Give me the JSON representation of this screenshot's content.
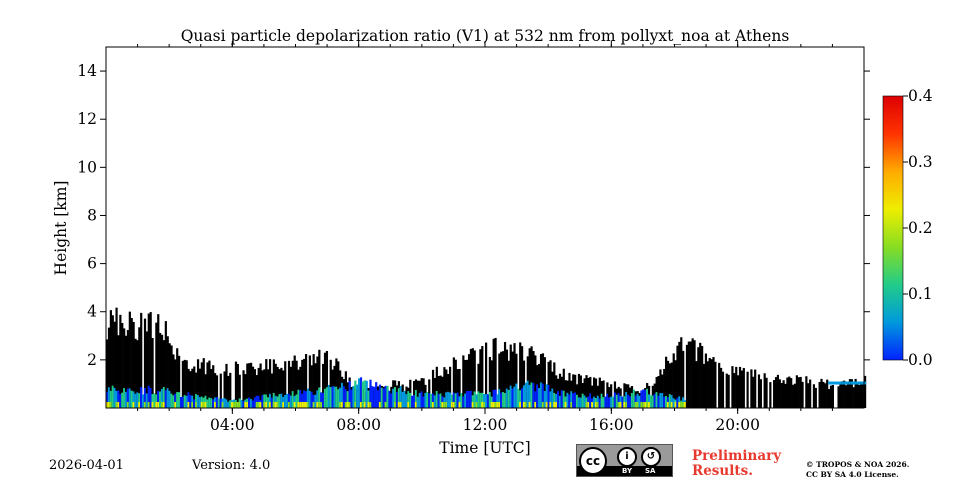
{
  "chart_data": {
    "type": "heatmap",
    "title": "Quasi particle depolarization ratio (V1) at 532 nm from pollyxt_noa at Athens",
    "xlabel": "Time [UTC]",
    "ylabel": "Height [km]",
    "xlim_hours": [
      0,
      24
    ],
    "ylim_km": [
      0,
      15
    ],
    "x_ticks": [
      {
        "hour": 4,
        "label": "04:00"
      },
      {
        "hour": 8,
        "label": "08:00"
      },
      {
        "hour": 12,
        "label": "12:00"
      },
      {
        "hour": 16,
        "label": "16:00"
      },
      {
        "hour": 20,
        "label": "20:00"
      }
    ],
    "y_ticks": [
      {
        "value": 2,
        "label": "2"
      },
      {
        "value": 4,
        "label": "4"
      },
      {
        "value": 6,
        "label": "6"
      },
      {
        "value": 8,
        "label": "8"
      },
      {
        "value": 10,
        "label": "10"
      },
      {
        "value": 12,
        "label": "12"
      },
      {
        "value": 14,
        "label": "14"
      }
    ],
    "colorbar": {
      "min": 0.0,
      "max": 0.4,
      "ticks": [
        {
          "value": 0.0,
          "label": "0.0"
        },
        {
          "value": 0.1,
          "label": "0.1"
        },
        {
          "value": 0.2,
          "label": "0.2"
        },
        {
          "value": 0.3,
          "label": "0.3"
        },
        {
          "value": 0.4,
          "label": "0.4"
        }
      ],
      "colors": [
        "#0022ff",
        "#0099dd",
        "#22cc88",
        "#88dd22",
        "#eeee00",
        "#ffaa00",
        "#ff3300",
        "#dd0000"
      ]
    },
    "colored_layer_top_km": [
      {
        "hour": 0.0,
        "km": 0.8
      },
      {
        "hour": 1.5,
        "km": 0.8
      },
      {
        "hour": 2.8,
        "km": 0.5
      },
      {
        "hour": 4.0,
        "km": 0.3
      },
      {
        "hour": 5.5,
        "km": 0.6
      },
      {
        "hour": 7.0,
        "km": 0.8
      },
      {
        "hour": 8.0,
        "km": 1.1
      },
      {
        "hour": 10.0,
        "km": 0.6
      },
      {
        "hour": 12.0,
        "km": 0.6
      },
      {
        "hour": 13.5,
        "km": 1.0
      },
      {
        "hour": 15.0,
        "km": 0.5
      },
      {
        "hour": 17.0,
        "km": 0.7
      },
      {
        "hour": 18.2,
        "km": 0.4
      }
    ],
    "black_signal_top_km": [
      {
        "hour": 0.0,
        "km": 3.8
      },
      {
        "hour": 1.0,
        "km": 3.6
      },
      {
        "hour": 1.8,
        "km": 3.4
      },
      {
        "hour": 2.3,
        "km": 2.0
      },
      {
        "hour": 3.5,
        "km": 1.7
      },
      {
        "hour": 4.5,
        "km": 1.8
      },
      {
        "hour": 5.5,
        "km": 1.9
      },
      {
        "hour": 7.0,
        "km": 2.2
      },
      {
        "hour": 8.0,
        "km": 0.8
      },
      {
        "hour": 10.0,
        "km": 1.2
      },
      {
        "hour": 12.0,
        "km": 2.6
      },
      {
        "hour": 13.5,
        "km": 2.3
      },
      {
        "hour": 14.5,
        "km": 1.4
      },
      {
        "hour": 16.0,
        "km": 1.0
      },
      {
        "hour": 17.0,
        "km": 0.8
      },
      {
        "hour": 18.3,
        "km": 2.8
      },
      {
        "hour": 19.0,
        "km": 2.2
      },
      {
        "hour": 20.5,
        "km": 1.4
      },
      {
        "hour": 22.0,
        "km": 1.2
      },
      {
        "hour": 23.0,
        "km": 1.0
      },
      {
        "hour": 24.0,
        "km": 1.2
      }
    ]
  },
  "footer": {
    "date": "2026-04-01",
    "version": "Version: 4.0",
    "preliminary": "Preliminary Results.",
    "copyright_line1": "© TROPOS & NOA 2026.",
    "copyright_line2": "CC BY SA 4.0 License.",
    "cc_badge": {
      "main": "cc",
      "by": "BY",
      "sa": "SA"
    }
  }
}
